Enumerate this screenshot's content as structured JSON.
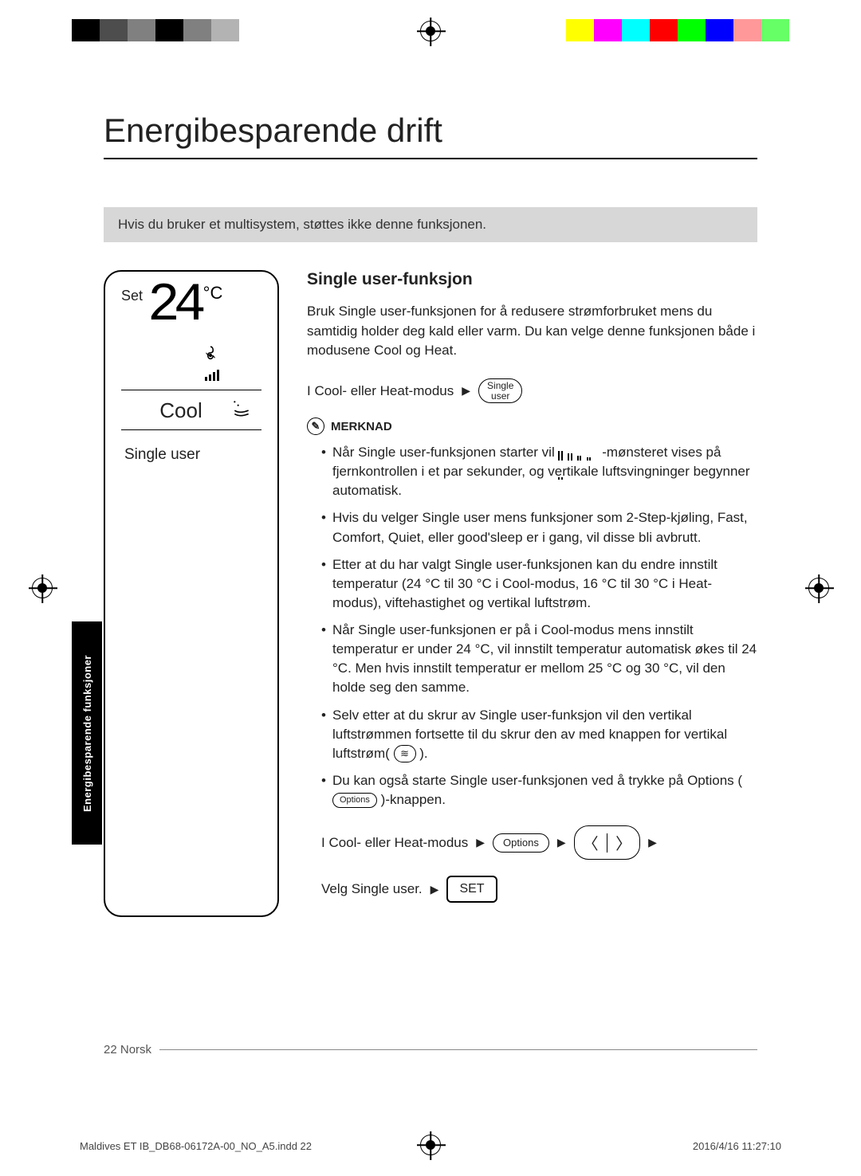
{
  "color_bars": {
    "left": [
      "#000000",
      "#4d4d4d",
      "#808080",
      "#000000",
      "#808080",
      "#b3b3b3"
    ],
    "right": [
      "#ffff00",
      "#ff00ff",
      "#00ffff",
      "#ff0000",
      "#00ff00",
      "#0000ff",
      "#ff9999",
      "#66ff66"
    ]
  },
  "title": "Energibesparende drift",
  "multisystem_note": "Hvis du bruker et multisystem, støttes ikke denne funksjonen.",
  "remote": {
    "set_label": "Set",
    "temp": "24",
    "unit": "°C",
    "mode": "Cool",
    "single_user": "Single user"
  },
  "section": {
    "heading": "Single user-funksjon",
    "intro": "Bruk Single user-funksjonen for å redusere strømforbruket mens du samtidig holder deg kald eller varm. Du kan velge denne funksjonen både i modusene Cool og Heat.",
    "step1_prefix": "I Cool- eller Heat-modus",
    "single_user_btn_line1": "Single",
    "single_user_btn_line2": "user",
    "merknad_label": "MERKNAD",
    "bullets": {
      "b1a": "Når Single user-funksjonen starter vil ",
      "b1b": "-mønsteret vises på fjernkontrollen i et par sekunder, og vertikale luftsvingninger begynner automatisk.",
      "b2": "Hvis du velger Single user mens funksjoner som  2-Step-kjøling, Fast, Comfort, Quiet, eller good'sleep er i gang, vil disse bli avbrutt.",
      "b3": "Etter at du har valgt Single user-funksjonen kan du endre innstilt temperatur (24 °C til 30 °C i Cool-modus, 16 °C til 30 °C i Heat-modus), viftehastighet og vertikal luftstrøm.",
      "b4": "Når Single user-funksjonen er på i Cool-modus mens innstilt temperatur er under 24 °C, vil innstilt temperatur automatisk økes til 24 °C. Men hvis innstilt temperatur er mellom 25 °C og 30 °C, vil den holde seg den samme.",
      "b5a": "Selv etter at du skrur av Single user-funksjon vil den vertikal luftstrømmen fortsette til du skrur den av med knappen for vertikal luftstrøm(",
      "b5b": ").",
      "b6a": "Du kan også starte Single user-funksjonen ved å trykke på Options (",
      "b6b": ")-knappen.",
      "options_label": "Options"
    },
    "nav": {
      "step2_prefix": "I Cool- eller Heat-modus",
      "options_btn": "Options",
      "step3_prefix": "Velg Single user.",
      "set_btn": "SET"
    }
  },
  "side_tab": "Energibesparende funksjoner",
  "footer": {
    "page_num": "22",
    "lang": "Norsk",
    "file": "Maldives ET IB_DB68-06172A-00_NO_A5.indd   22",
    "timestamp": "2016/4/16   11:27:10"
  }
}
